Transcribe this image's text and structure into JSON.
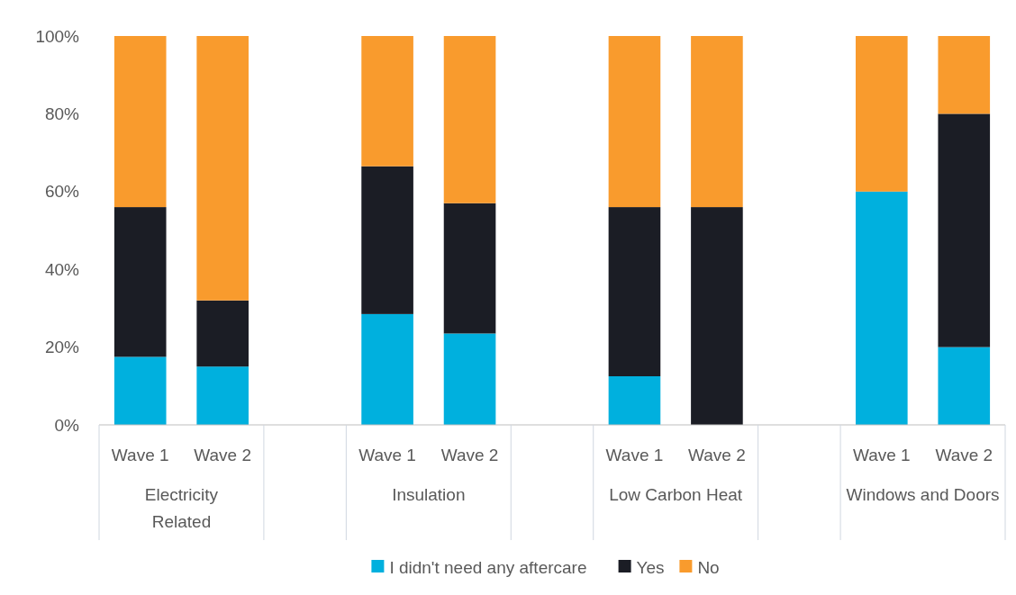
{
  "chart_data": {
    "type": "bar",
    "stacked": true,
    "categories": [
      "Wave 1",
      "Wave 2",
      null,
      "Wave 1",
      "Wave 2",
      null,
      "Wave 1",
      "Wave 2",
      null,
      "Wave 1",
      "Wave 2"
    ],
    "series": [
      {
        "name": "I didn't need any aftercare",
        "color": "#00b0de",
        "values": [
          17.5,
          15,
          null,
          28.5,
          23.5,
          null,
          12.5,
          0,
          null,
          60,
          20
        ]
      },
      {
        "name": "Yes",
        "color": "#1b1d25",
        "values": [
          38.5,
          17,
          null,
          38,
          33.5,
          null,
          43.5,
          56,
          null,
          0,
          60
        ]
      },
      {
        "name": "No",
        "color": "#f99b2d",
        "values": [
          44,
          68,
          null,
          33.5,
          43,
          null,
          44,
          44,
          null,
          40,
          20
        ]
      }
    ],
    "annotations": [
      "Electricity Related",
      "Insulation",
      "Low Carbon Heat",
      "Windows and Doors"
    ],
    "ylim": [
      0,
      100
    ],
    "yticks": [
      {
        "value": 0,
        "label": "0%"
      },
      {
        "value": 20,
        "label": "20%"
      },
      {
        "value": 40,
        "label": "40%"
      },
      {
        "value": 60,
        "label": "60%"
      },
      {
        "value": 80,
        "label": "80%"
      },
      {
        "value": 100,
        "label": "100%"
      }
    ],
    "grid": false,
    "legend": "bottom"
  }
}
